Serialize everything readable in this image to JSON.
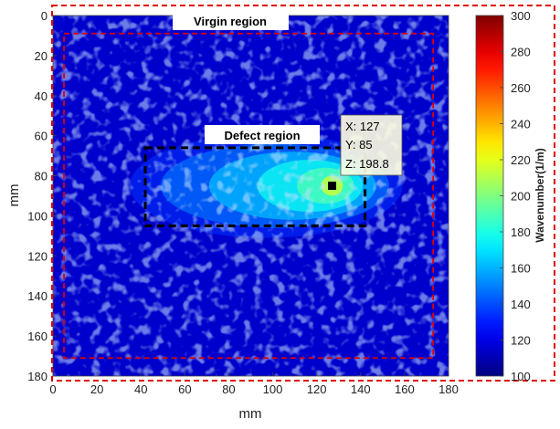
{
  "chart_data": {
    "type": "heatmap",
    "xlabel": "mm",
    "ylabel": "mm",
    "xlim": [
      0,
      180
    ],
    "ylim": [
      0,
      180
    ],
    "y_reversed": true,
    "xticks": [
      0,
      20,
      40,
      60,
      80,
      100,
      120,
      140,
      160,
      180
    ],
    "yticks": [
      0,
      20,
      40,
      60,
      80,
      100,
      120,
      140,
      160,
      180
    ],
    "colormap": "jet",
    "grid": false,
    "background_level": 115,
    "hotspot": {
      "x": 127,
      "y": 85,
      "peak": 198.8
    },
    "colorbar": {
      "label": "Wavenumber(1/m)",
      "min": 100,
      "max": 300,
      "ticks": [
        100,
        120,
        140,
        160,
        180,
        200,
        220,
        240,
        260,
        280,
        300
      ]
    },
    "annotations": {
      "virgin_region": {
        "label": "Virgin region",
        "x": [
          5,
          173
        ],
        "y": [
          9,
          171
        ]
      },
      "defect_region": {
        "label": "Defect region",
        "x": [
          42,
          142
        ],
        "y": [
          66,
          105
        ]
      },
      "datatip": {
        "x_text": "X: 127",
        "y_text": "Y: 85",
        "z_text": "Z: 198.8",
        "x": 127,
        "y": 85
      }
    }
  },
  "colors": {
    "virgin_box": "#e00000",
    "defect_box": "#000000",
    "low": "#0000ff",
    "high": "#800000"
  }
}
